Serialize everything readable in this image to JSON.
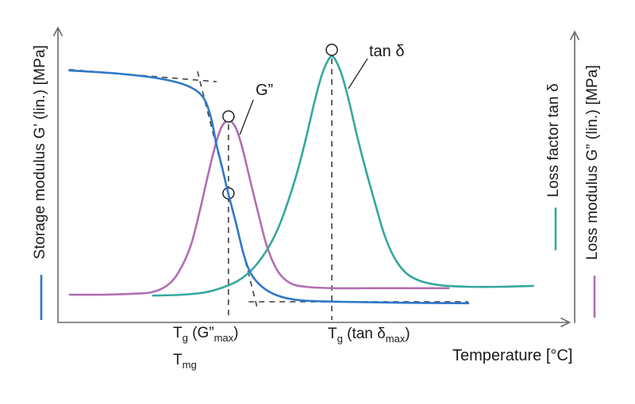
{
  "axes": {
    "left": {
      "label": "Storage modulus G’ (lin.) [MPa]"
    },
    "right_inner": {
      "label": "Loss factor tan δ"
    },
    "right_outer": {
      "label": "Loss modulus G” (lin.) [MPa]"
    },
    "x": {
      "label": "Temperature [°C]"
    }
  },
  "annotations": {
    "tan_delta_label": "tan δ",
    "g2_label": "G”",
    "tg_g2max": {
      "base": "T",
      "sub1": "g",
      "mid": " (G”",
      "sub2": "max",
      "end": ")"
    },
    "tmg": {
      "base": "T",
      "sub": "mg"
    },
    "tg_tandmax": {
      "base": "T",
      "sub1": "g",
      "mid": " (tan δ",
      "sub2": "max",
      "end": ")"
    }
  },
  "colors": {
    "storage_modulus": "#2e78c8",
    "loss_modulus": "#b06fb0",
    "tan_delta": "#35a79f",
    "construction": "#4a4a4a",
    "marker_stroke": "#222222",
    "axis": "#6a6a6a",
    "text": "#1a1a1a"
  },
  "chart_data": {
    "type": "line",
    "title": "",
    "xlabel": "Temperature [°C]",
    "ylabel_left": "Storage modulus G’ (lin.) [MPa]",
    "ylabel_right_inner": "Loss factor tan δ",
    "ylabel_right_outer": "Loss modulus G” (lin.) [MPa]",
    "note": "Schematic DMA glass-transition curves; axes carry no numeric scale. Points are fractions of the plot area (x: 0 = left axis, 1 = right axis; y: 0 = x-axis, 1 = top).",
    "legend_position": "axis-colored tick marks beside rotated axis labels",
    "grid": false,
    "series": [
      {
        "name": "Storage modulus G’",
        "color_key": "storage_modulus",
        "points": [
          [
            0.022,
            0.855
          ],
          [
            0.118,
            0.844
          ],
          [
            0.195,
            0.828
          ],
          [
            0.249,
            0.804
          ],
          [
            0.28,
            0.766
          ],
          [
            0.296,
            0.696
          ],
          [
            0.306,
            0.61
          ],
          [
            0.318,
            0.524
          ],
          [
            0.33,
            0.435
          ],
          [
            0.344,
            0.341
          ],
          [
            0.359,
            0.234
          ],
          [
            0.373,
            0.167
          ],
          [
            0.395,
            0.121
          ],
          [
            0.425,
            0.091
          ],
          [
            0.469,
            0.075
          ],
          [
            0.548,
            0.07
          ],
          [
            0.656,
            0.067
          ],
          [
            0.794,
            0.065
          ]
        ]
      },
      {
        "name": "Loss modulus G”",
        "color_key": "loss_modulus",
        "points": [
          [
            0.023,
            0.094
          ],
          [
            0.088,
            0.094
          ],
          [
            0.141,
            0.097
          ],
          [
            0.18,
            0.102
          ],
          [
            0.21,
            0.124
          ],
          [
            0.233,
            0.169
          ],
          [
            0.257,
            0.261
          ],
          [
            0.275,
            0.382
          ],
          [
            0.29,
            0.497
          ],
          [
            0.304,
            0.597
          ],
          [
            0.316,
            0.661
          ],
          [
            0.33,
            0.685
          ],
          [
            0.344,
            0.661
          ],
          [
            0.356,
            0.597
          ],
          [
            0.37,
            0.497
          ],
          [
            0.386,
            0.382
          ],
          [
            0.404,
            0.261
          ],
          [
            0.425,
            0.175
          ],
          [
            0.449,
            0.134
          ],
          [
            0.479,
            0.121
          ],
          [
            0.533,
            0.116
          ],
          [
            0.61,
            0.116
          ],
          [
            0.756,
            0.116
          ]
        ]
      },
      {
        "name": "Loss factor tan δ",
        "color_key": "tan_delta",
        "points": [
          [
            0.184,
            0.091
          ],
          [
            0.241,
            0.094
          ],
          [
            0.284,
            0.102
          ],
          [
            0.318,
            0.118
          ],
          [
            0.349,
            0.142
          ],
          [
            0.376,
            0.18
          ],
          [
            0.402,
            0.239
          ],
          [
            0.425,
            0.315
          ],
          [
            0.445,
            0.409
          ],
          [
            0.464,
            0.516
          ],
          [
            0.481,
            0.632
          ],
          [
            0.496,
            0.745
          ],
          [
            0.51,
            0.836
          ],
          [
            0.521,
            0.884
          ],
          [
            0.53,
            0.903
          ],
          [
            0.539,
            0.884
          ],
          [
            0.55,
            0.836
          ],
          [
            0.564,
            0.745
          ],
          [
            0.579,
            0.632
          ],
          [
            0.596,
            0.516
          ],
          [
            0.613,
            0.409
          ],
          [
            0.631,
            0.301
          ],
          [
            0.651,
            0.22
          ],
          [
            0.674,
            0.167
          ],
          [
            0.702,
            0.14
          ],
          [
            0.74,
            0.126
          ],
          [
            0.794,
            0.121
          ],
          [
            0.856,
            0.121
          ],
          [
            0.92,
            0.124
          ]
        ]
      }
    ],
    "markers": [
      {
        "name": "g2-max-marker",
        "at": [
          0.33,
          0.699
        ],
        "layer": "top"
      },
      {
        "name": "midpoint-marker",
        "at": [
          0.33,
          0.438
        ],
        "layer": "under-storage"
      },
      {
        "name": "tan-delta-max-marker",
        "at": [
          0.53,
          0.925
        ],
        "layer": "top"
      }
    ],
    "construction_lines": [
      {
        "name": "glassy-plateau-tangent",
        "from": [
          0.022,
          0.858
        ],
        "to": [
          0.307,
          0.817
        ]
      },
      {
        "name": "inflection-tangent",
        "from": [
          0.27,
          0.852
        ],
        "to": [
          0.387,
          0.04
        ]
      },
      {
        "name": "rubbery-plateau-tangent",
        "from": [
          0.369,
          0.07
        ],
        "to": [
          0.794,
          0.07
        ]
      },
      {
        "name": "g2-max-dropline",
        "from": [
          0.33,
          0.672
        ],
        "to": [
          0.33,
          0.008
        ]
      },
      {
        "name": "tan-delta-max-dropline",
        "from": [
          0.53,
          0.895
        ],
        "to": [
          0.53,
          0.008
        ]
      }
    ],
    "pointer_lines": [
      {
        "name": "g2-pointer",
        "from": [
          0.378,
          0.755
        ],
        "to": [
          0.352,
          0.637
        ]
      },
      {
        "name": "tan-delta-pointer",
        "from": [
          0.599,
          0.895
        ],
        "to": [
          0.562,
          0.793
        ]
      }
    ]
  }
}
